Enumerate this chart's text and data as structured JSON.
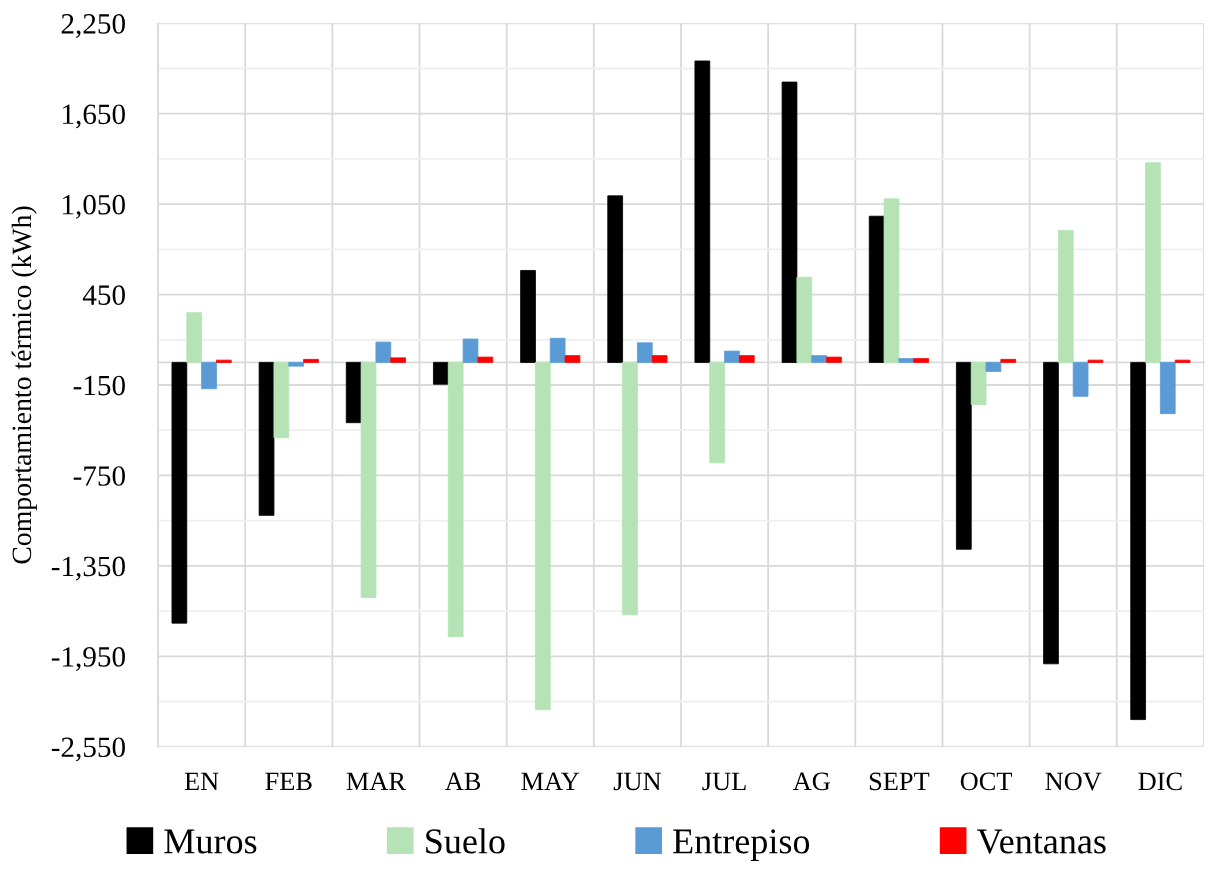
{
  "chart_data": {
    "type": "bar",
    "ylabel": "Comportamiento térmico (kWh)",
    "categories": [
      "EN",
      "FEB",
      "MAR",
      "AB",
      "MAY",
      "JUN",
      "JUL",
      "AG",
      "SEPT",
      "OCT",
      "NOV",
      "DIC"
    ],
    "series": [
      {
        "name": "Muros",
        "color": "#000000",
        "values": [
          -1730,
          -1015,
          -400,
          -145,
          610,
          1105,
          2000,
          1860,
          970,
          -1240,
          -2000,
          -2370
        ]
      },
      {
        "name": "Suelo",
        "color": "#b5e3b5",
        "values": [
          330,
          -500,
          -1560,
          -1820,
          -2305,
          -1675,
          -665,
          565,
          1085,
          -280,
          875,
          1325
        ]
      },
      {
        "name": "Entrepiso",
        "color": "#5b9bd5",
        "values": [
          -175,
          -25,
          135,
          155,
          160,
          130,
          75,
          45,
          25,
          -60,
          -225,
          -340
        ]
      },
      {
        "name": "Ventanas",
        "color": "#ff0000",
        "values": [
          15,
          20,
          30,
          35,
          45,
          45,
          45,
          35,
          25,
          20,
          15,
          15
        ]
      }
    ],
    "ylim": [
      -2550,
      2250
    ],
    "yticks": [
      {
        "value": -2550,
        "label": "-2,550"
      },
      {
        "value": -2250,
        "label": null
      },
      {
        "value": -1950,
        "label": "-1,950"
      },
      {
        "value": -1650,
        "label": null
      },
      {
        "value": -1350,
        "label": "-1,350"
      },
      {
        "value": -1050,
        "label": null
      },
      {
        "value": -750,
        "label": "-750"
      },
      {
        "value": -450,
        "label": null
      },
      {
        "value": -150,
        "label": "-150"
      },
      {
        "value": 150,
        "label": null
      },
      {
        "value": 450,
        "label": "450"
      },
      {
        "value": 750,
        "label": null
      },
      {
        "value": 1050,
        "label": "1,050"
      },
      {
        "value": 1350,
        "label": null
      },
      {
        "value": 1650,
        "label": "1,650"
      },
      {
        "value": 1950,
        "label": null
      },
      {
        "value": 2250,
        "label": "2,250"
      }
    ],
    "grid": true,
    "legend": "bottom"
  }
}
